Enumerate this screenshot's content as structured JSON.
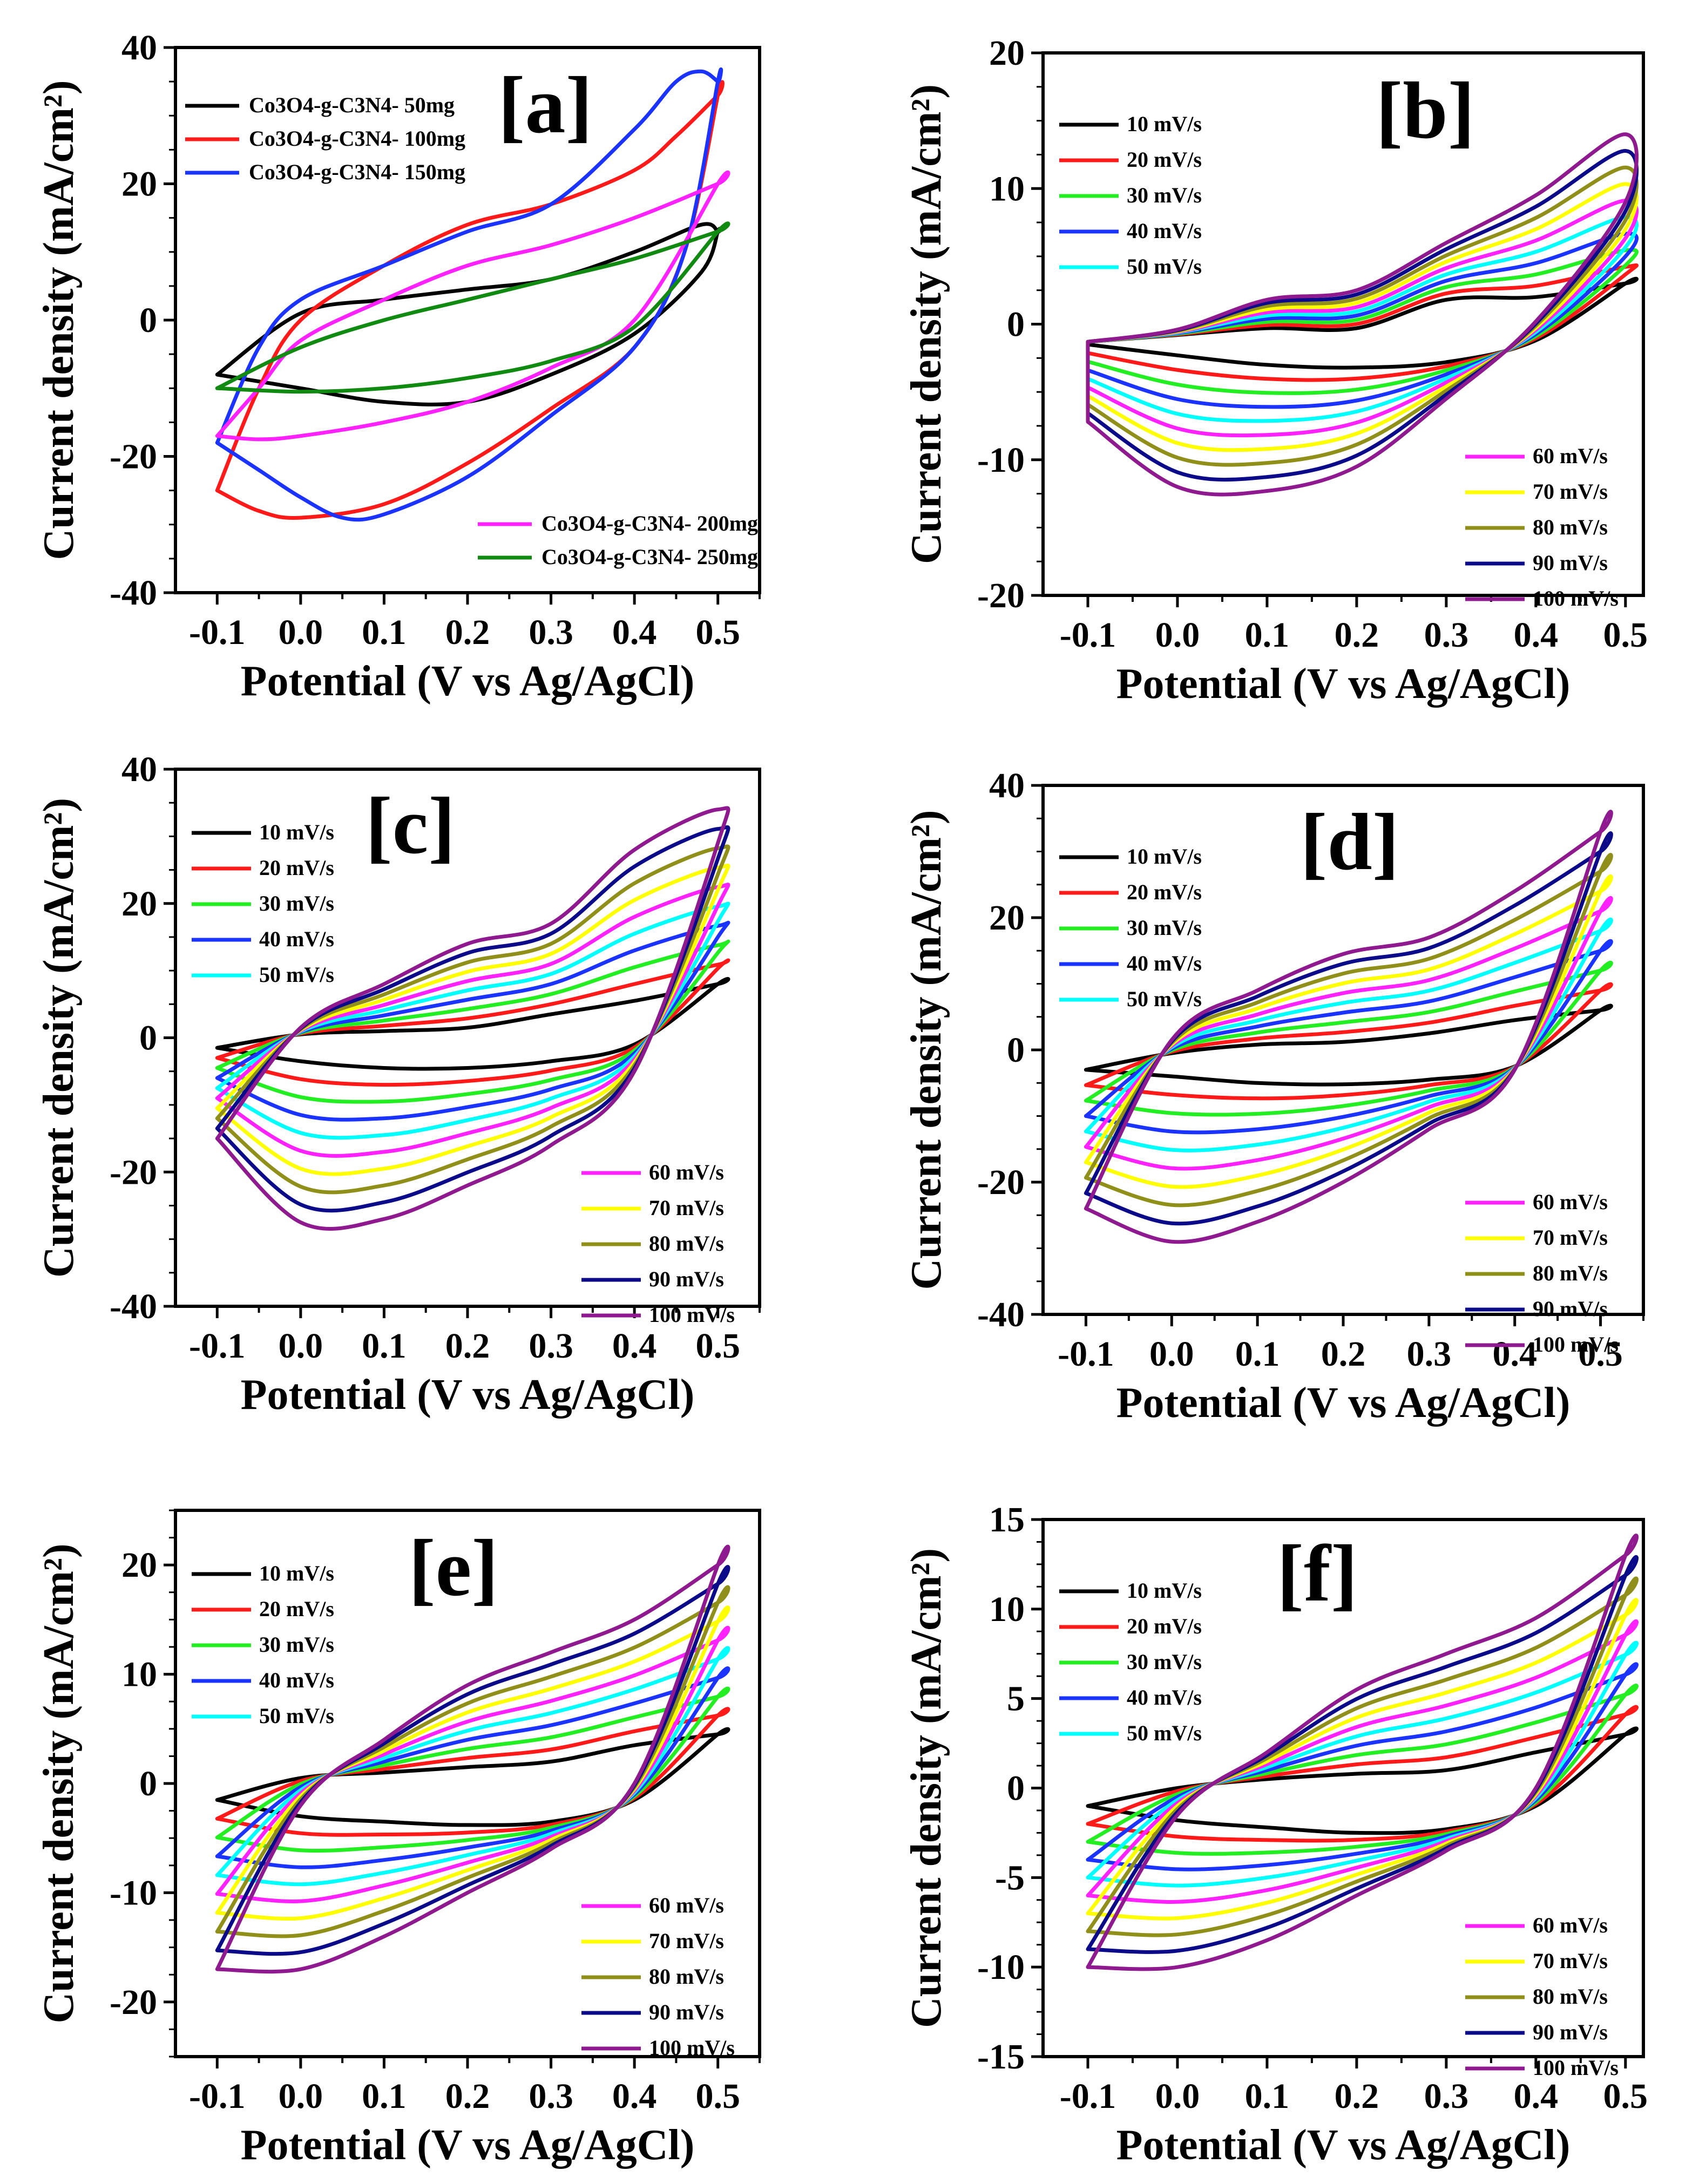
{
  "figure": {
    "xlabel": "Potential (V vs Ag/AgCl)",
    "ylabel": "Current density (mA/cm²)"
  },
  "colors": {
    "black": "#000000",
    "red": "#ff1a1a",
    "green": "#22ee22",
    "blue": "#1a33ff",
    "cyan": "#00ffff",
    "magenta": "#ff22ff",
    "yellow": "#ffff00",
    "olive": "#8f8f1a",
    "navy": "#0b0b8a",
    "purple": "#8f1a8f",
    "darkgreen": "#108a10"
  },
  "scan_rate_labels": [
    "10 mV/s",
    "20 mV/s",
    "30 mV/s",
    "40 mV/s",
    "50 mV/s",
    "60 mV/s",
    "70 mV/s",
    "80 mV/s",
    "90 mV/s",
    "100 mV/s"
  ],
  "chart_data": [
    {
      "id": "a",
      "panel_label": "[a]",
      "type": "line",
      "xlim": [
        -0.15,
        0.55
      ],
      "ylim": [
        -40,
        40
      ],
      "xticks": [
        -0.1,
        0.0,
        0.1,
        0.2,
        0.3,
        0.4,
        0.5
      ],
      "yticks": [
        -40,
        -20,
        0,
        20,
        40
      ],
      "series": [
        {
          "name": "Co3O4-g-C3N4- 50mg",
          "color": "#000000",
          "upper": [
            [
              -0.1,
              -8
            ],
            [
              0.0,
              1
            ],
            [
              0.1,
              3
            ],
            [
              0.2,
              4.5
            ],
            [
              0.3,
              6
            ],
            [
              0.4,
              10
            ],
            [
              0.48,
              14
            ],
            [
              0.5,
              13
            ]
          ],
          "lower": [
            [
              -0.1,
              -8
            ],
            [
              0.0,
              -10
            ],
            [
              0.1,
              -12
            ],
            [
              0.2,
              -12
            ],
            [
              0.3,
              -8
            ],
            [
              0.4,
              -2
            ],
            [
              0.48,
              7
            ],
            [
              0.5,
              13
            ]
          ]
        },
        {
          "name": "Co3O4-g-C3N4- 100mg",
          "color": "#ff1a1a",
          "upper": [
            [
              -0.1,
              -25
            ],
            [
              -0.05,
              -10
            ],
            [
              0.0,
              0
            ],
            [
              0.1,
              8
            ],
            [
              0.2,
              14
            ],
            [
              0.3,
              17
            ],
            [
              0.4,
              22
            ],
            [
              0.45,
              27
            ],
            [
              0.5,
              33
            ]
          ],
          "lower": [
            [
              -0.1,
              -25
            ],
            [
              -0.05,
              -28
            ],
            [
              0.0,
              -29
            ],
            [
              0.1,
              -27
            ],
            [
              0.2,
              -21
            ],
            [
              0.3,
              -13
            ],
            [
              0.4,
              -4
            ],
            [
              0.46,
              10
            ],
            [
              0.5,
              33
            ]
          ]
        },
        {
          "name": "Co3O4-g-C3N4- 150mg",
          "color": "#1a33ff",
          "upper": [
            [
              -0.1,
              -18
            ],
            [
              -0.05,
              -4
            ],
            [
              0.0,
              3
            ],
            [
              0.1,
              8
            ],
            [
              0.2,
              13
            ],
            [
              0.3,
              17
            ],
            [
              0.4,
              28
            ],
            [
              0.45,
              35
            ],
            [
              0.48,
              36.5
            ],
            [
              0.5,
              35
            ]
          ],
          "lower": [
            [
              -0.1,
              -18
            ],
            [
              -0.05,
              -22
            ],
            [
              0.0,
              -26
            ],
            [
              0.05,
              -29
            ],
            [
              0.1,
              -28.5
            ],
            [
              0.2,
              -23
            ],
            [
              0.3,
              -14
            ],
            [
              0.4,
              -4
            ],
            [
              0.46,
              10
            ],
            [
              0.5,
              35
            ]
          ]
        },
        {
          "name": "Co3O4-g-C3N4- 200mg",
          "color": "#ff22ff",
          "upper": [
            [
              -0.1,
              -17
            ],
            [
              -0.05,
              -10
            ],
            [
              0.0,
              -3
            ],
            [
              0.1,
              3
            ],
            [
              0.2,
              8
            ],
            [
              0.3,
              11
            ],
            [
              0.4,
              15
            ],
            [
              0.5,
              20
            ]
          ],
          "lower": [
            [
              -0.1,
              -17
            ],
            [
              -0.05,
              -17.5
            ],
            [
              0.0,
              -17
            ],
            [
              0.1,
              -15
            ],
            [
              0.2,
              -12
            ],
            [
              0.3,
              -7
            ],
            [
              0.4,
              0
            ],
            [
              0.5,
              20
            ]
          ]
        },
        {
          "name": "Co3O4-g-C3N4- 250mg",
          "color": "#108a10",
          "upper": [
            [
              -0.1,
              -10
            ],
            [
              0.0,
              -4
            ],
            [
              0.1,
              0
            ],
            [
              0.2,
              3
            ],
            [
              0.3,
              6
            ],
            [
              0.4,
              9
            ],
            [
              0.5,
              13
            ]
          ],
          "lower": [
            [
              -0.1,
              -10
            ],
            [
              0.0,
              -10.5
            ],
            [
              0.1,
              -10
            ],
            [
              0.2,
              -8.5
            ],
            [
              0.3,
              -6
            ],
            [
              0.4,
              -1
            ],
            [
              0.5,
              13
            ]
          ]
        }
      ]
    },
    {
      "id": "b",
      "panel_label": "[b]",
      "type": "line",
      "xlim": [
        -0.15,
        0.52
      ],
      "ylim": [
        -20,
        20
      ],
      "xticks": [
        -0.1,
        0.0,
        0.1,
        0.2,
        0.3,
        0.4,
        0.5
      ],
      "yticks": [
        -20,
        -10,
        0,
        10,
        20
      ],
      "series_template": {
        "ui": [
          -1.3,
          -0.4,
          1.8,
          2.5,
          6.0,
          9.5,
          14.0
        ],
        "li": [
          -7.2,
          -12.0,
          -12.3,
          -10.5,
          -5.5,
          0.2,
          9.0
        ],
        "uc": [
          -1.3,
          -0.8,
          -0.3,
          -0.3,
          1.8,
          2.0,
          3.0
        ],
        "lc": [
          -1.5,
          -2.3,
          -3.0,
          -3.2,
          -2.8,
          -1.2,
          3.0
        ]
      }
    },
    {
      "id": "c",
      "panel_label": "[c]",
      "type": "line",
      "xlim": [
        -0.15,
        0.55
      ],
      "ylim": [
        -40,
        40
      ],
      "xticks": [
        -0.1,
        0.0,
        0.1,
        0.2,
        0.3,
        0.4,
        0.5
      ],
      "yticks": [
        -40,
        -20,
        0,
        20,
        40
      ],
      "series_template": {
        "ui": [
          -15.0,
          1.5,
          8.0,
          14.0,
          17.0,
          28.0,
          34.0
        ],
        "li": [
          -15.0,
          -27.5,
          -27.0,
          -22.0,
          -16.0,
          -5.0,
          29.0
        ],
        "uc": [
          -1.5,
          0.5,
          1.0,
          1.5,
          3.5,
          5.5,
          8.0
        ],
        "lc": [
          -1.5,
          -3.5,
          -4.5,
          -4.5,
          -3.5,
          -1.0,
          8.0
        ]
      }
    },
    {
      "id": "d",
      "panel_label": "[d]",
      "type": "line",
      "xlim": [
        -0.15,
        0.55
      ],
      "ylim": [
        -40,
        40
      ],
      "xticks": [
        -0.1,
        0.0,
        0.1,
        0.2,
        0.3,
        0.4,
        0.5
      ],
      "yticks": [
        -40,
        -20,
        0,
        20,
        40
      ],
      "series_template": {
        "ui": [
          -24.0,
          1.5,
          9.0,
          14.5,
          17.0,
          24.0,
          33.0
        ],
        "li": [
          -24.0,
          -29.0,
          -26.0,
          -20.0,
          -12.0,
          -3.0,
          33.0
        ],
        "uc": [
          -3.0,
          -0.5,
          0.8,
          1.2,
          2.5,
          4.5,
          6.0
        ],
        "lc": [
          -3.0,
          -4.0,
          -5.0,
          -5.2,
          -4.5,
          -2.5,
          6.0
        ]
      }
    },
    {
      "id": "e",
      "panel_label": "[e]",
      "type": "line",
      "xlim": [
        -0.15,
        0.55
      ],
      "ylim": [
        -25,
        25
      ],
      "xticks": [
        -0.1,
        0.0,
        0.1,
        0.2,
        0.3,
        0.4,
        0.5
      ],
      "yticks": [
        -20,
        -10,
        0,
        10,
        20
      ],
      "series_template": {
        "ui": [
          -17.0,
          -2.0,
          4.0,
          9.0,
          12.0,
          15.0,
          20.0
        ],
        "li": [
          -17.0,
          -17.0,
          -14.0,
          -10.0,
          -6.0,
          0.0,
          20.0
        ],
        "uc": [
          -1.5,
          0.5,
          1.0,
          1.5,
          2.0,
          3.5,
          4.5
        ],
        "lc": [
          -1.5,
          -3.0,
          -3.5,
          -3.8,
          -3.5,
          -1.5,
          4.5
        ]
      }
    },
    {
      "id": "f",
      "panel_label": "[f]",
      "type": "line",
      "xlim": [
        -0.15,
        0.52
      ],
      "ylim": [
        -15,
        15
      ],
      "xticks": [
        -0.1,
        0.0,
        0.1,
        0.2,
        0.3,
        0.4,
        0.5
      ],
      "yticks": [
        -15,
        -10,
        -5,
        0,
        5,
        10,
        15
      ],
      "series_template": {
        "ui": [
          -10.0,
          -1.5,
          2.0,
          5.5,
          7.5,
          9.5,
          13.0
        ],
        "li": [
          -10.0,
          -10.0,
          -8.5,
          -6.0,
          -3.5,
          0.0,
          13.0
        ],
        "uc": [
          -1.0,
          0.0,
          0.5,
          0.8,
          1.0,
          2.0,
          3.0
        ],
        "lc": [
          -1.0,
          -1.8,
          -2.2,
          -2.5,
          -2.3,
          -1.0,
          3.0
        ]
      }
    }
  ]
}
